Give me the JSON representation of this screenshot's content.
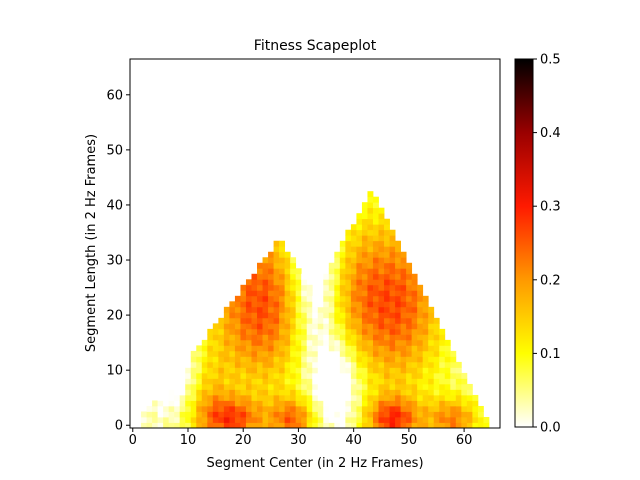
{
  "chart_data": {
    "type": "heatmap",
    "title": "Fitness Scapeplot",
    "xlabel": "Segment Center (in 2 Hz Frames)",
    "ylabel": "Segment Length (in 2 Hz Frames)",
    "xlim": [
      -0.5,
      66.5
    ],
    "ylim": [
      -0.5,
      66.5
    ],
    "x_ticks": [
      0,
      10,
      20,
      30,
      40,
      50,
      60
    ],
    "y_ticks": [
      0,
      10,
      20,
      30,
      40,
      50,
      60
    ],
    "x_tick_labels": [
      "0",
      "10",
      "20",
      "30",
      "40",
      "50",
      "60"
    ],
    "y_tick_labels": [
      "0",
      "10",
      "20",
      "30",
      "40",
      "50",
      "60"
    ],
    "colorbar": {
      "colormap": "gist_heat_r",
      "range": [
        0.0,
        0.5
      ],
      "ticks": [
        0.0,
        0.1,
        0.2,
        0.3,
        0.4,
        0.5
      ],
      "tick_labels": [
        "0.0",
        "0.1",
        "0.2",
        "0.3",
        "0.4",
        "0.5"
      ]
    },
    "grid": false,
    "n_frames": 66,
    "support": "triangle: cell (center c, length L) filled for L <= 2*min(c, 66-c); approximate visible support shown",
    "value_peaks": [
      {
        "center": 23,
        "length": 22,
        "value": 0.25
      },
      {
        "center": 48,
        "length": 22,
        "value": 0.24
      },
      {
        "center": 18,
        "length": 1,
        "value": 0.28
      },
      {
        "center": 47,
        "length": 1,
        "value": 0.3
      },
      {
        "center": 29,
        "length": 1,
        "value": 0.27
      },
      {
        "center": 58,
        "length": 1,
        "value": 0.26
      }
    ],
    "value_troughs": [
      {
        "center": 33,
        "length": 35,
        "value": 0.02
      },
      {
        "center": 37,
        "length": 8,
        "value": 0.03
      },
      {
        "center": 8,
        "length": 10,
        "value": 0.02
      }
    ]
  }
}
